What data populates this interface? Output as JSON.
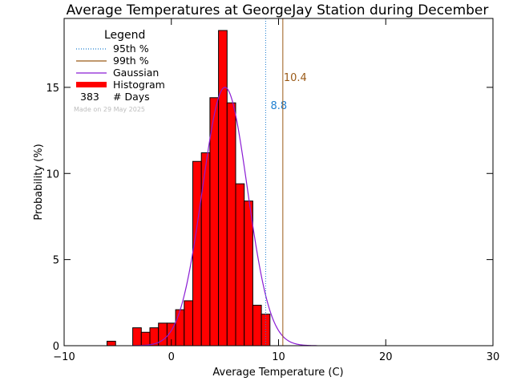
{
  "chart_data": {
    "type": "bar",
    "title": "Average Temperatures at GeorgeJay Station during December",
    "xlabel": "Average Temperature (C)",
    "ylabel": "Probability (%)",
    "xlim": [
      -10,
      30
    ],
    "ylim": [
      0,
      19
    ],
    "x_ticks": [
      -10,
      0,
      10,
      20,
      30
    ],
    "y_ticks": [
      0,
      5,
      10,
      15
    ],
    "bin_width": 0.8,
    "bin_start": -6.0,
    "histogram_values": [
      0.26,
      0.0,
      0.0,
      1.04,
      0.78,
      1.04,
      1.31,
      1.31,
      2.09,
      2.61,
      10.7,
      11.2,
      14.4,
      18.3,
      14.1,
      9.4,
      8.4,
      2.35,
      1.83
    ],
    "gaussian": {
      "mean": 5.0,
      "peak": 15.0,
      "sigma": 2.1
    },
    "percentiles": [
      {
        "name": "95th %",
        "value": 8.8,
        "label": "8.8",
        "color": "#1e7fd1",
        "style": "dotted-line"
      },
      {
        "name": "99th %",
        "value": 10.4,
        "label": "10.4",
        "color": "#9a5a17",
        "style": "solid-line"
      }
    ],
    "legend": {
      "title": "Legend",
      "position": "top-left",
      "entries": [
        {
          "name": "95th %",
          "color": "#1e7fd1",
          "style": "dotted-line"
        },
        {
          "name": "99th %",
          "color": "#9a5a17",
          "style": "solid-line"
        },
        {
          "name": "Gaussian",
          "color": "#8a1cd4",
          "style": "solid-line"
        },
        {
          "name": "Histogram",
          "color": "#ff0000",
          "style": "thick-bar"
        }
      ],
      "count_value": "383",
      "count_label": "# Days"
    },
    "note": "Made on 29 May 2025",
    "colors": {
      "bar_fill": "#ff0000",
      "bar_edge": "#000000",
      "gaussian": "#8a1cd4"
    }
  }
}
